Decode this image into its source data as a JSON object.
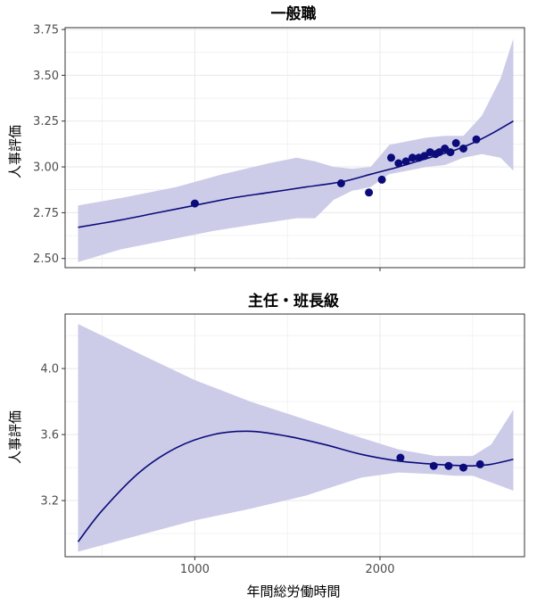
{
  "chart_data": [
    {
      "type": "scatter",
      "title": "一般職",
      "xlabel": "",
      "ylabel": "人事評価",
      "xlim": [
        300,
        2780
      ],
      "ylim": [
        2.45,
        3.76
      ],
      "x_ticks": [
        1000,
        2000
      ],
      "y_ticks": [
        "2.50",
        "2.75",
        "3.00",
        "3.25",
        "3.50",
        "3.75"
      ],
      "grid": true,
      "colors": {
        "point": "#0b0b7a",
        "line": "#0b0b7a",
        "band": "#c9c9e8",
        "panel_border": "#333333",
        "grid": "#ebebeb"
      },
      "points": [
        [
          1000,
          2.8
        ],
        [
          1790,
          2.91
        ],
        [
          1940,
          2.86
        ],
        [
          2010,
          2.93
        ],
        [
          2060,
          3.05
        ],
        [
          2100,
          3.02
        ],
        [
          2140,
          3.03
        ],
        [
          2175,
          3.05
        ],
        [
          2210,
          3.05
        ],
        [
          2240,
          3.06
        ],
        [
          2270,
          3.08
        ],
        [
          2300,
          3.07
        ],
        [
          2320,
          3.08
        ],
        [
          2350,
          3.1
        ],
        [
          2380,
          3.08
        ],
        [
          2410,
          3.13
        ],
        [
          2450,
          3.1
        ],
        [
          2520,
          3.15
        ]
      ],
      "fit": [
        [
          370,
          2.67
        ],
        [
          600,
          2.71
        ],
        [
          800,
          2.75
        ],
        [
          1000,
          2.79
        ],
        [
          1200,
          2.83
        ],
        [
          1400,
          2.86
        ],
        [
          1600,
          2.89
        ],
        [
          1800,
          2.92
        ],
        [
          1950,
          2.96
        ],
        [
          2100,
          3.0
        ],
        [
          2200,
          3.03
        ],
        [
          2300,
          3.06
        ],
        [
          2400,
          3.09
        ],
        [
          2500,
          3.13
        ],
        [
          2600,
          3.18
        ],
        [
          2720,
          3.25
        ]
      ],
      "band_upper": [
        [
          370,
          2.79
        ],
        [
          600,
          2.83
        ],
        [
          900,
          2.89
        ],
        [
          1150,
          2.96
        ],
        [
          1400,
          3.02
        ],
        [
          1550,
          3.05
        ],
        [
          1650,
          3.03
        ],
        [
          1750,
          3.0
        ],
        [
          1850,
          2.99
        ],
        [
          1950,
          3.0
        ],
        [
          2050,
          3.12
        ],
        [
          2150,
          3.14
        ],
        [
          2250,
          3.16
        ],
        [
          2350,
          3.17
        ],
        [
          2450,
          3.17
        ],
        [
          2550,
          3.28
        ],
        [
          2650,
          3.48
        ],
        [
          2720,
          3.7
        ]
      ],
      "band_lower": [
        [
          370,
          2.48
        ],
        [
          600,
          2.55
        ],
        [
          850,
          2.6
        ],
        [
          1100,
          2.65
        ],
        [
          1350,
          2.69
        ],
        [
          1550,
          2.72
        ],
        [
          1650,
          2.72
        ],
        [
          1750,
          2.82
        ],
        [
          1850,
          2.87
        ],
        [
          1950,
          2.89
        ],
        [
          2050,
          2.96
        ],
        [
          2150,
          2.98
        ],
        [
          2250,
          3.0
        ],
        [
          2350,
          3.01
        ],
        [
          2450,
          3.05
        ],
        [
          2550,
          3.07
        ],
        [
          2650,
          3.05
        ],
        [
          2720,
          2.98
        ]
      ]
    },
    {
      "type": "scatter",
      "title": "主任・班長級",
      "xlabel": "年間総労働時間",
      "ylabel": "人事評価",
      "xlim": [
        300,
        2780
      ],
      "ylim": [
        2.86,
        4.33
      ],
      "x_ticks": [
        1000,
        2000
      ],
      "y_ticks": [
        "3.2",
        "3.6",
        "4.0"
      ],
      "grid": true,
      "colors": {
        "point": "#0b0b7a",
        "line": "#0b0b7a",
        "band": "#c9c9e8",
        "panel_border": "#333333",
        "grid": "#ebebeb"
      },
      "points": [
        [
          2110,
          3.46
        ],
        [
          2290,
          3.41
        ],
        [
          2370,
          3.41
        ],
        [
          2450,
          3.4
        ],
        [
          2540,
          3.42
        ]
      ],
      "fit": [
        [
          370,
          2.95
        ],
        [
          500,
          3.14
        ],
        [
          700,
          3.37
        ],
        [
          900,
          3.52
        ],
        [
          1100,
          3.6
        ],
        [
          1300,
          3.62
        ],
        [
          1500,
          3.59
        ],
        [
          1700,
          3.54
        ],
        [
          1900,
          3.48
        ],
        [
          2100,
          3.44
        ],
        [
          2300,
          3.42
        ],
        [
          2500,
          3.41
        ],
        [
          2600,
          3.42
        ],
        [
          2720,
          3.45
        ]
      ],
      "band_upper": [
        [
          370,
          4.27
        ],
        [
          700,
          4.09
        ],
        [
          1000,
          3.93
        ],
        [
          1300,
          3.8
        ],
        [
          1600,
          3.69
        ],
        [
          1900,
          3.58
        ],
        [
          2100,
          3.51
        ],
        [
          2300,
          3.47
        ],
        [
          2500,
          3.47
        ],
        [
          2600,
          3.54
        ],
        [
          2720,
          3.75
        ]
      ],
      "band_lower": [
        [
          370,
          2.89
        ],
        [
          700,
          2.99
        ],
        [
          1000,
          3.08
        ],
        [
          1300,
          3.15
        ],
        [
          1600,
          3.23
        ],
        [
          1900,
          3.34
        ],
        [
          2100,
          3.37
        ],
        [
          2300,
          3.36
        ],
        [
          2400,
          3.35
        ],
        [
          2500,
          3.35
        ],
        [
          2600,
          3.31
        ],
        [
          2720,
          3.26
        ]
      ]
    }
  ]
}
